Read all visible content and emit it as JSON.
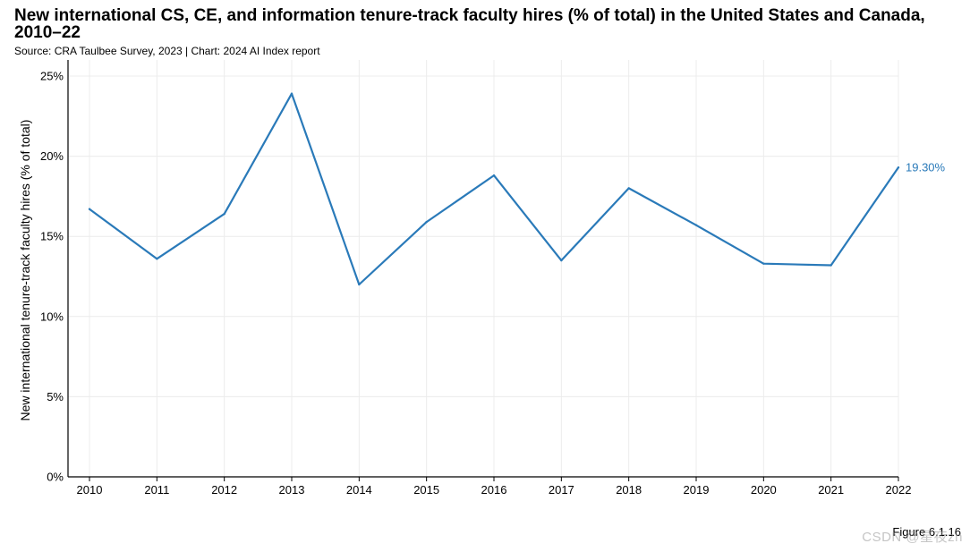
{
  "title": "New international CS, CE, and information tenure-track faculty hires (% of total) in the United States and Canada, 2010–22",
  "subtitle": "Source: CRA Taulbee Survey, 2023 | Chart: 2024 AI Index report",
  "figure_label": "Figure 6.1.16",
  "watermark": "CSDN @星夜zn",
  "colors": {
    "series": "#2a7ab9",
    "grid": "#ececec",
    "axis": "#000000"
  },
  "chart_data": {
    "type": "line",
    "title": "New international CS, CE, and information tenure-track faculty hires (% of total) in the United States and Canada, 2010–22",
    "xlabel": "",
    "ylabel": "New international tenure-track faculty hires (% of total)",
    "x": [
      "2010",
      "2011",
      "2012",
      "2013",
      "2014",
      "2015",
      "2016",
      "2017",
      "2018",
      "2019",
      "2020",
      "2021",
      "2022"
    ],
    "series": [
      {
        "values": [
          16.7,
          13.6,
          16.4,
          23.9,
          12.0,
          15.9,
          18.8,
          13.5,
          18.0,
          15.7,
          13.3,
          13.2,
          19.3
        ]
      }
    ],
    "ylim": [
      0,
      25
    ],
    "yticks": [
      0,
      5,
      10,
      15,
      20,
      25
    ],
    "ytick_labels": [
      "0%",
      "5%",
      "10%",
      "15%",
      "20%",
      "25%"
    ],
    "end_label": "19.30%",
    "grid": true,
    "legend": "none"
  }
}
